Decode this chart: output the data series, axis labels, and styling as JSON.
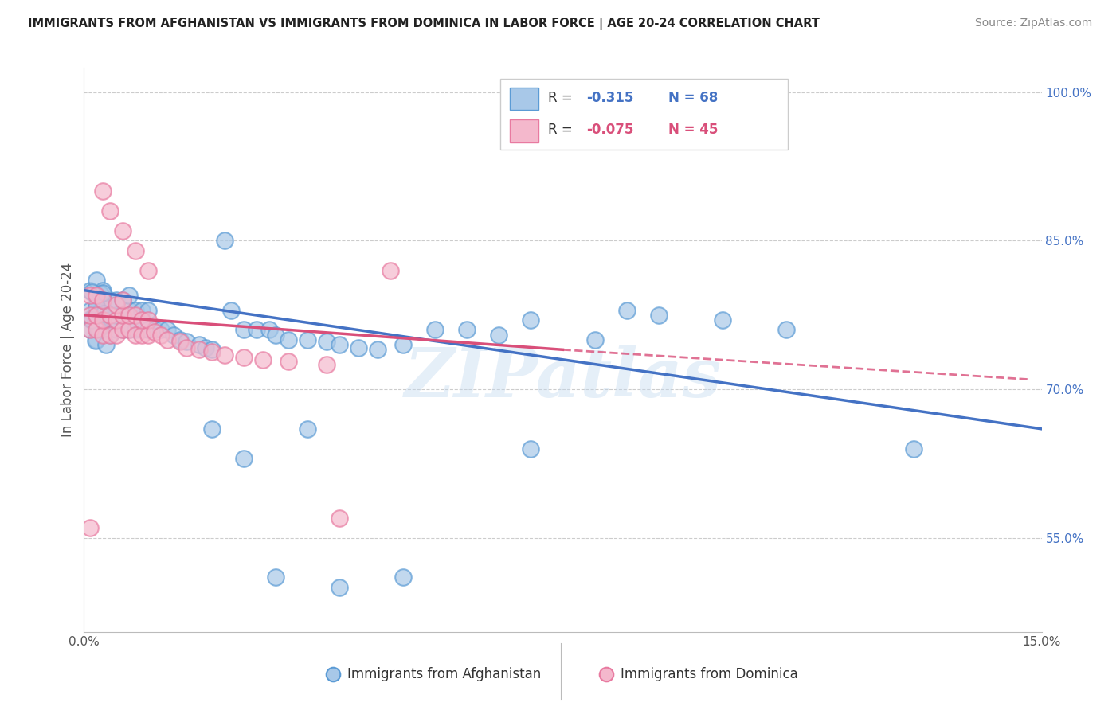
{
  "title": "IMMIGRANTS FROM AFGHANISTAN VS IMMIGRANTS FROM DOMINICA IN LABOR FORCE | AGE 20-24 CORRELATION CHART",
  "source": "Source: ZipAtlas.com",
  "ylabel": "In Labor Force | Age 20-24",
  "xlim": [
    0.0,
    0.15
  ],
  "ylim": [
    0.455,
    1.025
  ],
  "xticks": [
    0.0,
    0.03,
    0.06,
    0.09,
    0.12,
    0.15
  ],
  "xtick_labels": [
    "0.0%",
    "",
    "",
    "",
    "",
    "15.0%"
  ],
  "yticks_right": [
    0.55,
    0.7,
    0.85,
    1.0
  ],
  "ytick_labels_right": [
    "55.0%",
    "70.0%",
    "85.0%",
    "100.0%"
  ],
  "color_blue_fill": "#a8c8e8",
  "color_blue_edge": "#5b9bd5",
  "color_pink_fill": "#f4b8cc",
  "color_pink_edge": "#e87aa0",
  "color_blue_line": "#4472C4",
  "color_pink_line": "#d94f7a",
  "color_grid": "#cccccc",
  "color_title": "#222222",
  "color_source": "#888888",
  "color_right_axis": "#4472C4",
  "watermark": "ZIPatlas",
  "afg_x": [
    0.001,
    0.001,
    0.001,
    0.002,
    0.002,
    0.002,
    0.002,
    0.003,
    0.003,
    0.003,
    0.003,
    0.004,
    0.004,
    0.004,
    0.005,
    0.005,
    0.005,
    0.006,
    0.006,
    0.006,
    0.007,
    0.007,
    0.007,
    0.008,
    0.008,
    0.009,
    0.009,
    0.01,
    0.01,
    0.011,
    0.012,
    0.013,
    0.014,
    0.015,
    0.016,
    0.018,
    0.019,
    0.02,
    0.022,
    0.023,
    0.025,
    0.027,
    0.029,
    0.03,
    0.032,
    0.035,
    0.038,
    0.04,
    0.043,
    0.046,
    0.05,
    0.055,
    0.06,
    0.065,
    0.07,
    0.08,
    0.085,
    0.09,
    0.1,
    0.11,
    0.02,
    0.025,
    0.03,
    0.035,
    0.04,
    0.05,
    0.07,
    0.13
  ],
  "afg_y": [
    0.76,
    0.78,
    0.8,
    0.75,
    0.77,
    0.785,
    0.81,
    0.76,
    0.775,
    0.79,
    0.8,
    0.755,
    0.77,
    0.79,
    0.76,
    0.775,
    0.79,
    0.76,
    0.775,
    0.79,
    0.76,
    0.78,
    0.795,
    0.76,
    0.78,
    0.76,
    0.78,
    0.76,
    0.78,
    0.76,
    0.76,
    0.76,
    0.755,
    0.75,
    0.748,
    0.745,
    0.742,
    0.74,
    0.85,
    0.78,
    0.76,
    0.76,
    0.76,
    0.755,
    0.75,
    0.75,
    0.748,
    0.745,
    0.742,
    0.74,
    0.745,
    0.76,
    0.76,
    0.755,
    0.77,
    0.75,
    0.78,
    0.775,
    0.77,
    0.76,
    0.66,
    0.63,
    0.51,
    0.66,
    0.5,
    0.51,
    0.64,
    0.64
  ],
  "dom_x": [
    0.001,
    0.001,
    0.001,
    0.002,
    0.002,
    0.002,
    0.003,
    0.003,
    0.003,
    0.004,
    0.004,
    0.005,
    0.005,
    0.005,
    0.006,
    0.006,
    0.006,
    0.007,
    0.007,
    0.008,
    0.008,
    0.009,
    0.009,
    0.01,
    0.01,
    0.011,
    0.012,
    0.013,
    0.015,
    0.016,
    0.018,
    0.02,
    0.022,
    0.025,
    0.028,
    0.032,
    0.038,
    0.048,
    0.003,
    0.004,
    0.006,
    0.008,
    0.01,
    0.04,
    0.001
  ],
  "dom_y": [
    0.76,
    0.775,
    0.795,
    0.76,
    0.775,
    0.795,
    0.755,
    0.77,
    0.79,
    0.755,
    0.775,
    0.755,
    0.77,
    0.785,
    0.76,
    0.775,
    0.79,
    0.76,
    0.775,
    0.755,
    0.775,
    0.755,
    0.77,
    0.755,
    0.77,
    0.758,
    0.755,
    0.75,
    0.748,
    0.742,
    0.74,
    0.738,
    0.735,
    0.732,
    0.73,
    0.728,
    0.725,
    0.82,
    0.9,
    0.88,
    0.86,
    0.84,
    0.82,
    0.57,
    0.56
  ]
}
